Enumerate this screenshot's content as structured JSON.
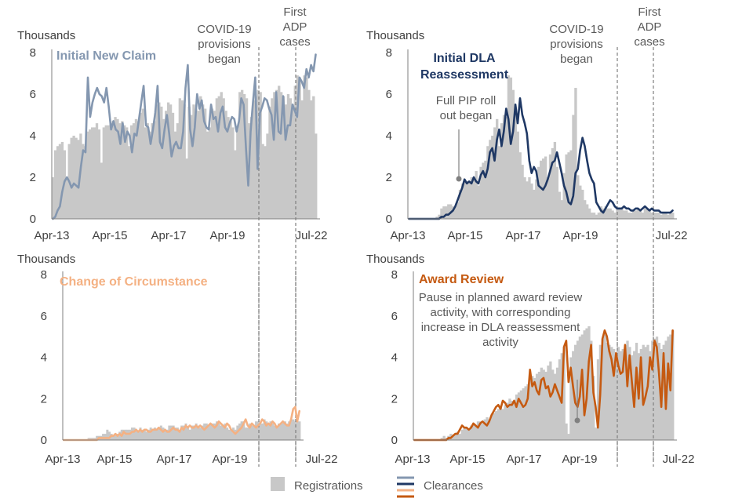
{
  "legend": {
    "registrations": "Registrations",
    "clearances": "Clearances"
  },
  "colors": {
    "registrations": "#c8c8c8",
    "axis": "#7f7f7f",
    "dashed": "#7f7f7f",
    "text": "#404040",
    "annotation": "#595959"
  },
  "chart_data": [
    {
      "type": "bar",
      "title": "Initial New Claim",
      "title_color": "#8497b0",
      "ylabel": "Thousands",
      "ylim": [
        0,
        8
      ],
      "yticks": [
        "0",
        "2",
        "4",
        "6",
        "8"
      ],
      "xticks": [
        "Apr-13",
        "Apr-15",
        "Apr-17",
        "Apr-19",
        "Jul-22"
      ],
      "annotations": [
        "COVID-19\nprovisions\nbegan",
        "First\nADP\ncases"
      ],
      "series": [
        {
          "name": "Registrations",
          "kind": "bars",
          "color": "#c8c8c8",
          "values": [
            2.0,
            3.3,
            3.5,
            3.6,
            3.7,
            3.3,
            2.0,
            3.6,
            3.9,
            4.0,
            3.9,
            3.8,
            4.1,
            3.6,
            3.5,
            4.2,
            4.3,
            4.4,
            4.4,
            4.6,
            4.3,
            2.7,
            4.4,
            4.5,
            4.5,
            4.6,
            4.7,
            4.9,
            4.8,
            4.6,
            4.7,
            4.5,
            4.4,
            3.5,
            4.5,
            4.6,
            4.8,
            4.7,
            5.1,
            5.3,
            4.4,
            4.6,
            4.2,
            4.6,
            4.7,
            5.5,
            5.6,
            5.4,
            4.8,
            5.2,
            5.6,
            5.5,
            5.1,
            4.2,
            4.6,
            5.8,
            5.7,
            5.5,
            2.9,
            5.4,
            5.0,
            5.5,
            5.3,
            5.2,
            5.9,
            5.5,
            5.3,
            4.2,
            4.4,
            5.3,
            5.2,
            5.8,
            5.9,
            6.1,
            5.8,
            5.2,
            4.9,
            4.7,
            4.4,
            3.3,
            4.3,
            6.1,
            6.2,
            6.0,
            5.8,
            4.6,
            4.9,
            5.7,
            5.9,
            6.2,
            6.1,
            3.6,
            3.5,
            4.1,
            5.4,
            5.8,
            6.1,
            6.2,
            6.4,
            6.1,
            5.9,
            5.5,
            6.0,
            5.8,
            5.5,
            6.4,
            6.9,
            6.8,
            5.7,
            6.9,
            6.8,
            6.2,
            5.7,
            5.9,
            4.1
          ]
        },
        {
          "name": "Clearances",
          "kind": "line",
          "color": "#8497b0",
          "values": [
            0,
            0.1,
            0.4,
            0.6,
            1.3,
            1.8,
            2.0,
            1.8,
            1.5,
            1.7,
            1.6,
            1.5,
            2.5,
            3.3,
            3.2,
            6.8,
            4.9,
            5.6,
            6.0,
            6.3,
            6.0,
            5.9,
            5.6,
            6.3,
            5.4,
            4.3,
            4.7,
            4.3,
            4.2,
            3.6,
            4.6,
            3.7,
            4.2,
            4.0,
            3.2,
            4.1,
            4.0,
            4.8,
            5.6,
            6.4,
            4.5,
            4.4,
            3.6,
            4.3,
            5.1,
            6.4,
            3.7,
            3.4,
            4.3,
            5.0,
            4.1,
            3.0,
            3.5,
            3.7,
            3.4,
            3.4,
            4.2,
            6.3,
            7.4,
            4.3,
            3.5,
            4.4,
            6.0,
            5.3,
            5.7,
            4.7,
            4.4,
            4.3,
            5.5,
            4.8,
            4.9,
            4.2,
            5.1,
            5.4,
            4.4,
            4.2,
            4.6,
            4.9,
            4.8,
            4.2,
            4.7,
            5.8,
            5.5,
            3.4,
            1.6,
            4.2,
            5.6,
            6.8,
            2.4,
            5.1,
            5.4,
            5.8,
            5.7,
            5.3,
            5.0,
            3.8,
            6.1,
            4.2,
            4.1,
            5.9,
            3.8,
            4.5,
            4.5,
            5.5,
            5.2,
            4.9,
            6.8,
            6.6,
            6.3,
            7.2,
            6.8,
            7.4,
            7.1,
            7.9
          ]
        }
      ]
    },
    {
      "type": "bar",
      "title": "Initial DLA\nReassessment",
      "title_color": "#1f3864",
      "ylabel": "Thousands",
      "ylim": [
        0,
        8
      ],
      "yticks": [
        "0",
        "2",
        "4",
        "6",
        "8"
      ],
      "xticks": [
        "Apr-13",
        "Apr-15",
        "Apr-17",
        "Apr-19",
        "Jul-22"
      ],
      "annotations": [
        "COVID-19\nprovisions\nbegan",
        "First\nADP\ncases",
        "Full PIP roll\nout began"
      ],
      "series": [
        {
          "name": "Registrations",
          "kind": "bars",
          "color": "#c8c8c8",
          "values": [
            0,
            0,
            0,
            0,
            0,
            0,
            0,
            0,
            0,
            0,
            0,
            0,
            0.1,
            0.2,
            0.5,
            0.6,
            0.6,
            0.7,
            0.7,
            0.6,
            0.6,
            0.8,
            1.4,
            1.7,
            1.9,
            1.8,
            1.8,
            2.0,
            1.9,
            2.3,
            1.6,
            2.5,
            2.7,
            2.8,
            3.5,
            3.8,
            4.0,
            4.4,
            4.8,
            3.5,
            4.6,
            5.0,
            4.9,
            6.9,
            6.8,
            6.2,
            5.4,
            4.2,
            3.2,
            2.6,
            2.0,
            1.8,
            2.0,
            1.7,
            1.4,
            1.9,
            2.5,
            2.8,
            2.9,
            3.0,
            2.0,
            3.1,
            3.4,
            3.7,
            2.5,
            1.3,
            0.9,
            2.2,
            3.1,
            3.2,
            3.3,
            5.0,
            6.3,
            2.1,
            1.6,
            1.4,
            0.9,
            0.7,
            0.5,
            0.3,
            0.3,
            0.2,
            0.3,
            0.6,
            0.5,
            0.6,
            0.5,
            0.5,
            0.4,
            0.3,
            0.5,
            0.5,
            0.5,
            0.4,
            0.4,
            0.3,
            0.3,
            0.4,
            0.4,
            0.5,
            0.4,
            0.3,
            0.5,
            0.5,
            0.4,
            0.3,
            0.3,
            0.3,
            0.3,
            0.2,
            0.3,
            0.3,
            0.2,
            0.3,
            0.3
          ]
        },
        {
          "name": "Clearances",
          "kind": "line",
          "color": "#1f3864",
          "values": [
            0,
            0,
            0,
            0,
            0,
            0,
            0,
            0,
            0,
            0,
            0,
            0,
            0,
            0,
            0.1,
            0.1,
            0.2,
            0.2,
            0.3,
            0.4,
            0.6,
            0.9,
            1.2,
            1.5,
            1.9,
            1.7,
            1.8,
            1.7,
            2.0,
            1.8,
            1.7,
            2.1,
            2.3,
            2.0,
            2.4,
            3.2,
            3.4,
            2.8,
            3.8,
            4.3,
            3.5,
            4.2,
            5.3,
            4.8,
            3.6,
            4.2,
            5.5,
            4.6,
            5.8,
            5.0,
            4.6,
            4.1,
            2.8,
            2.2,
            2.5,
            2.3,
            1.6,
            1.5,
            1.4,
            1.6,
            1.9,
            2.3,
            2.7,
            2.8,
            3.2,
            2.7,
            2.2,
            1.6,
            1.3,
            0.8,
            0.7,
            1.1,
            2.2,
            2.4,
            3.3,
            3.9,
            3.5,
            2.8,
            2.2,
            1.9,
            1.7,
            0.8,
            0.6,
            0.4,
            0.3,
            0.5,
            0.7,
            0.9,
            0.8,
            0.6,
            0.5,
            0.5,
            0.5,
            0.6,
            0.5,
            0.5,
            0.4,
            0.4,
            0.5,
            0.5,
            0.4,
            0.5,
            0.6,
            0.5,
            0.4,
            0.5,
            0.4,
            0.4,
            0.4,
            0.3,
            0.3,
            0.3,
            0.3,
            0.3,
            0.4
          ]
        }
      ]
    },
    {
      "type": "bar",
      "title": "Change of Circumstance",
      "title_color": "#f4b183",
      "ylabel": "Thousands",
      "ylim": [
        0,
        8
      ],
      "yticks": [
        "0",
        "2",
        "4",
        "6",
        "8"
      ],
      "xticks": [
        "Apr-13",
        "Apr-15",
        "Apr-17",
        "Apr-19",
        "Jul-22"
      ],
      "annotations": [],
      "series": [
        {
          "name": "Registrations",
          "kind": "bars",
          "color": "#c8c8c8",
          "values": [
            0,
            0,
            0,
            0,
            0,
            0,
            0,
            0,
            0,
            0,
            0,
            0,
            0.1,
            0.1,
            0.1,
            0.1,
            0.2,
            0.2,
            0.2,
            0.3,
            0.3,
            0.5,
            0.4,
            0.3,
            0.2,
            0.3,
            0.3,
            0.4,
            0.5,
            0.5,
            0.5,
            0.5,
            0.5,
            0.6,
            0.6,
            0.5,
            0.4,
            0.6,
            0.5,
            0.5,
            0.4,
            0.5,
            0.6,
            0.5,
            0.6,
            0.5,
            0.6,
            0.7,
            0.6,
            0.5,
            0.5,
            0.7,
            0.7,
            0.7,
            0.6,
            0.6,
            0.5,
            0.7,
            0.7,
            0.8,
            0.6,
            0.5,
            0.7,
            0.7,
            0.8,
            0.7,
            0.6,
            0.7,
            0.8,
            0.8,
            0.7,
            0.8,
            0.8,
            0.8,
            0.9,
            0.8,
            0.7,
            0.7,
            0.8,
            0.6,
            0.5,
            0.5,
            0.6,
            0.5,
            0.7,
            0.8,
            0.9,
            0.9,
            0.6,
            0.6,
            0.8,
            0.7,
            0.7,
            0.9,
            0.9,
            0.8,
            0.8,
            1.0,
            0.9,
            0.8,
            0.9,
            0.8,
            0.7,
            0.7,
            0.8,
            0.8,
            0.9,
            0.9,
            0.8,
            0.9,
            1.0,
            1.0,
            0.9,
            0.9,
            0.9
          ]
        },
        {
          "name": "Clearances",
          "kind": "line",
          "color": "#f4b183",
          "values": [
            0,
            0,
            0,
            0,
            0,
            0,
            0,
            0,
            0,
            0,
            0,
            0,
            0,
            0,
            0,
            0,
            0,
            0.1,
            0.1,
            0.1,
            0.1,
            0.1,
            0.1,
            0.2,
            0.2,
            0.3,
            0.2,
            0.3,
            0.2,
            0.4,
            0.3,
            0.3,
            0.3,
            0.4,
            0.4,
            0.5,
            0.4,
            0.5,
            0.4,
            0.5,
            0.5,
            0.4,
            0.4,
            0.5,
            0.5,
            0.5,
            0.6,
            0.5,
            0.4,
            0.5,
            0.4,
            0.4,
            0.5,
            0.6,
            0.5,
            0.5,
            0.4,
            0.6,
            0.5,
            0.7,
            0.6,
            0.7,
            0.6,
            0.6,
            0.7,
            0.6,
            0.7,
            0.6,
            0.5,
            0.6,
            0.7,
            0.8,
            0.7,
            0.6,
            0.7,
            0.9,
            0.8,
            0.7,
            0.6,
            0.8,
            0.7,
            0.5,
            0.4,
            0.3,
            0.4,
            0.5,
            0.6,
            0.8,
            1.0,
            0.7,
            0.6,
            0.8,
            0.7,
            0.6,
            0.7,
            0.8,
            1.0,
            0.9,
            0.7,
            0.8,
            0.7,
            0.9,
            0.8,
            0.6,
            0.7,
            0.8,
            0.9,
            0.8,
            0.7,
            0.7,
            1.0,
            1.5,
            1.6,
            0.9,
            1.4
          ]
        }
      ]
    },
    {
      "type": "bar",
      "title": "Award Review",
      "title_color": "#c55a11",
      "ylabel": "Thousands",
      "ylim": [
        0,
        8
      ],
      "yticks": [
        "0",
        "2",
        "4",
        "6",
        "8"
      ],
      "xticks": [
        "Apr-13",
        "Apr-15",
        "Apr-17",
        "Apr-19",
        "Jul-22"
      ],
      "annotations": [
        "Pause in planned award review\nactivity, with corresponding\nincrease in DLA reassessment\nactivity"
      ],
      "series": [
        {
          "name": "Registrations",
          "kind": "bars",
          "color": "#c8c8c8",
          "values": [
            0,
            0,
            0,
            0,
            0,
            0,
            0,
            0,
            0,
            0,
            0,
            0,
            0.1,
            0.2,
            0.1,
            0.2,
            0.3,
            0.2,
            0.3,
            0.4,
            0.3,
            0.5,
            0.6,
            0.6,
            0.5,
            0.7,
            0.8,
            0.7,
            0.9,
            0.9,
            0.8,
            1.0,
            1.1,
            1.0,
            1.2,
            1.3,
            1.4,
            1.5,
            1.6,
            1.5,
            1.7,
            1.8,
            2.0,
            1.9,
            1.8,
            2.2,
            2.3,
            2.4,
            2.5,
            2.6,
            2.7,
            2.9,
            3.1,
            3.0,
            3.2,
            3.3,
            3.5,
            3.4,
            3.3,
            3.6,
            3.8,
            3.4,
            3.2,
            3.5,
            3.9,
            4.2,
            4.5,
            0.8,
            0.3,
            4.0,
            4.3,
            4.6,
            4.8,
            5.0,
            5.1,
            5.3,
            5.4,
            5.5,
            4.8,
            3.1,
            0.6,
            3.9,
            4.6,
            4.9,
            5.1,
            4.7,
            4.6,
            4.5,
            4.4,
            4.2,
            4.5,
            4.3,
            4.4,
            4.6,
            4.8,
            4.5,
            4.1,
            4.3,
            4.7,
            4.2,
            4.4,
            4.6,
            4.5,
            4.6,
            4.3,
            4.8,
            4.9,
            5.0,
            4.7,
            4.4,
            4.6,
            4.8,
            5.0,
            5.1,
            5.3
          ]
        },
        {
          "name": "Clearances",
          "kind": "line",
          "color": "#c55a11",
          "values": [
            0,
            0,
            0,
            0,
            0,
            0,
            0,
            0,
            0,
            0,
            0,
            0,
            0,
            0,
            0,
            0.1,
            0.1,
            0.2,
            0.3,
            0.3,
            0.5,
            0.7,
            0.6,
            0.6,
            0.5,
            0.6,
            0.8,
            0.7,
            0.6,
            0.8,
            0.9,
            0.8,
            0.7,
            0.9,
            1.2,
            1.4,
            1.6,
            1.7,
            1.5,
            1.9,
            1.8,
            1.6,
            1.7,
            1.7,
            1.9,
            1.6,
            2.0,
            1.8,
            1.6,
            1.7,
            2.0,
            3.4,
            2.6,
            2.8,
            2.4,
            2.2,
            2.9,
            3.0,
            2.5,
            2.6,
            2.1,
            2.3,
            2.7,
            2.4,
            2.1,
            1.8,
            4.5,
            4.8,
            2.8,
            3.5,
            2.6,
            1.8,
            1.6,
            2.1,
            3.4,
            1.2,
            2.0,
            3.8,
            4.6,
            2.3,
            1.6,
            0.6,
            2.2,
            4.9,
            5.3,
            5.0,
            4.3,
            3.9,
            3.1,
            4.2,
            3.6,
            3.2,
            3.3,
            4.6,
            2.6,
            4.1,
            2.8,
            1.6,
            3.5,
            2.0,
            4.0,
            1.7,
            2.1,
            2.6,
            4.0,
            3.4,
            4.8,
            4.5,
            3.2,
            1.6,
            4.2,
            1.5,
            3.7,
            2.4,
            5.3
          ]
        }
      ]
    }
  ]
}
